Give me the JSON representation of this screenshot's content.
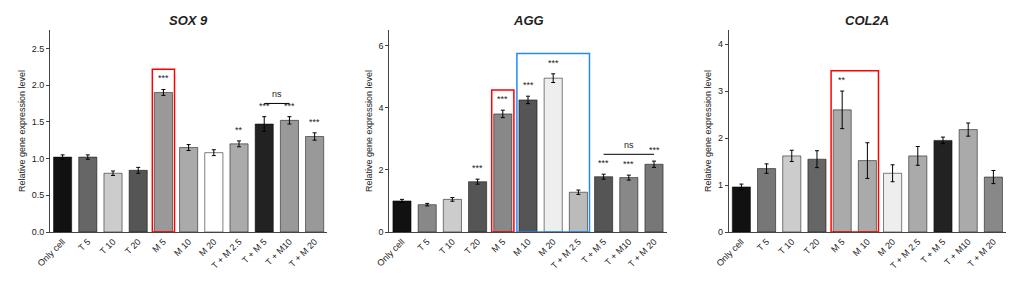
{
  "chart_data": [
    {
      "type": "bar",
      "title": "SOX 9",
      "ylabel": "Relative gene expression level",
      "categories": [
        "Only cell",
        "T 5",
        "T 10",
        "T 20",
        "M 5",
        "M 10",
        "M 20",
        "T + M 2.5",
        "T + M 5",
        "T + M10",
        "T + M 20"
      ],
      "values": [
        1.02,
        1.02,
        0.8,
        0.84,
        1.9,
        1.15,
        1.08,
        1.2,
        1.47,
        1.52,
        1.3
      ],
      "errors": [
        0.03,
        0.03,
        0.03,
        0.04,
        0.04,
        0.04,
        0.04,
        0.04,
        0.1,
        0.05,
        0.05
      ],
      "colors": [
        "#111111",
        "#666666",
        "#cccccc",
        "#555555",
        "#999999",
        "#aaaaaa",
        "#ffffff",
        "#aaaaaa",
        "#222222",
        "#999999",
        "#999999"
      ],
      "ylim": [
        0.0,
        2.75
      ],
      "yticks": [
        {
          "value": 0.0,
          "label": "0.0"
        },
        {
          "value": 0.5,
          "label": "0.5"
        },
        {
          "value": 1.0,
          "label": "1.0"
        },
        {
          "value": 1.5,
          "label": "1.5"
        },
        {
          "value": 2.0,
          "label": "2.0"
        },
        {
          "value": 2.5,
          "label": "2.5"
        }
      ],
      "grid": false,
      "annotations": [
        {
          "text": "***",
          "x": 4
        },
        {
          "text": "**",
          "x": 7
        },
        {
          "text": "***",
          "x": 8
        },
        {
          "text": "***",
          "x": 9
        },
        {
          "text": "***",
          "x": 10
        }
      ],
      "brackets": [
        {
          "text": "ns",
          "x": [
            8,
            9
          ],
          "y": 1.75,
          "text_y": 1.78
        }
      ],
      "boxes": [
        {
          "x": [
            4,
            4
          ],
          "color": "red"
        }
      ]
    },
    {
      "type": "bar",
      "title": "AGG",
      "ylabel": "Relative gene expression level",
      "categories": [
        "Only cell",
        "T 5",
        "T 10",
        "T 20",
        "M 5",
        "M 10",
        "M 20",
        "T + M 2.5",
        "T + M 5",
        "T + M10",
        "T + M 20"
      ],
      "values": [
        1.0,
        0.88,
        1.05,
        1.62,
        3.8,
        4.25,
        4.95,
        1.28,
        1.78,
        1.75,
        2.18
      ],
      "errors": [
        0.05,
        0.04,
        0.06,
        0.08,
        0.12,
        0.12,
        0.14,
        0.07,
        0.08,
        0.08,
        0.1
      ],
      "colors": [
        "#111111",
        "#888888",
        "#cccccc",
        "#555555",
        "#888888",
        "#555555",
        "#eeeeee",
        "#bbbbbb",
        "#555555",
        "#888888",
        "#777777"
      ],
      "ylim": [
        0,
        6.5
      ],
      "yticks": [
        0,
        2,
        4,
        6
      ],
      "grid": false,
      "annotations": [
        {
          "text": "***",
          "x": 3
        },
        {
          "text": "***",
          "x": 4
        },
        {
          "text": "***",
          "x": 5
        },
        {
          "text": "***",
          "x": 6
        },
        {
          "text": "***",
          "x": 8
        },
        {
          "text": "***",
          "x": 9
        },
        {
          "text": "***",
          "x": 10
        }
      ],
      "brackets": [
        {
          "text": "ns",
          "x": [
            8,
            10
          ],
          "y": 2.5,
          "text_y": 2.58
        }
      ],
      "boxes": [
        {
          "x": [
            4,
            4
          ],
          "color": "red"
        },
        {
          "x": [
            5,
            7
          ],
          "color": "#2288ff"
        }
      ]
    },
    {
      "type": "bar",
      "title": "COL2A",
      "ylabel": "Relative gene expression level",
      "categories": [
        "Only cell",
        "T 5",
        "T 10",
        "T 20",
        "M 5",
        "M 10",
        "M 20",
        "T + M 2.5",
        "T + M 5",
        "T + M10",
        "T + M 20"
      ],
      "values": [
        0.96,
        1.35,
        1.62,
        1.55,
        2.6,
        1.52,
        1.25,
        1.62,
        1.95,
        2.18,
        1.17
      ],
      "errors": [
        0.06,
        0.1,
        0.12,
        0.18,
        0.4,
        0.38,
        0.18,
        0.2,
        0.07,
        0.14,
        0.14
      ],
      "colors": [
        "#111111",
        "#777777",
        "#cccccc",
        "#666666",
        "#aaaaaa",
        "#aaaaaa",
        "#eeeeee",
        "#aaaaaa",
        "#222222",
        "#aaaaaa",
        "#888888"
      ],
      "ylim": [
        0,
        4.3
      ],
      "yticks": [
        0,
        1,
        2,
        3,
        4
      ],
      "grid": false,
      "annotations": [
        {
          "text": "**",
          "x": 4
        }
      ],
      "brackets": [],
      "boxes": [
        {
          "x": [
            4,
            5
          ],
          "color": "red"
        }
      ]
    }
  ]
}
